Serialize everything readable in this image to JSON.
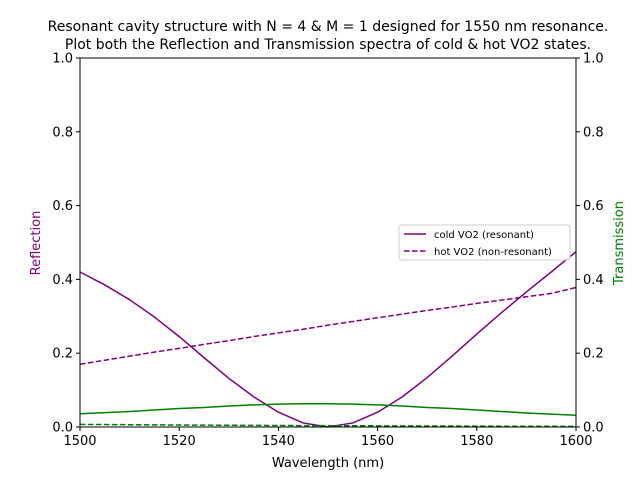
{
  "chart_data": {
    "type": "line",
    "title_line1": "Resonant cavity structure with N = 4 & M = 1 designed for 1550 nm resonance.",
    "title_line2": "Plot both the Reflection and Transmission spectra of cold & hot VO2 states.",
    "xlabel": "Wavelength (nm)",
    "ylabel_left": "Reflection",
    "ylabel_right": "Transmission",
    "xlim": [
      1500,
      1600
    ],
    "ylim_left": [
      0,
      1
    ],
    "ylim_right": [
      0,
      1
    ],
    "x_ticks": [
      "1500",
      "1520",
      "1540",
      "1560",
      "1580",
      "1600"
    ],
    "y_ticks_left": [
      "0.0",
      "0.2",
      "0.4",
      "0.6",
      "0.8",
      "1.0"
    ],
    "y_ticks_right": [
      "0.0",
      "0.2",
      "0.4",
      "0.6",
      "0.8",
      "1.0"
    ],
    "grid": false,
    "legend_position": "center-right",
    "colors": {
      "reflection": "#800080",
      "transmission": "#008000"
    },
    "x": [
      1500,
      1505,
      1510,
      1515,
      1520,
      1525,
      1530,
      1535,
      1540,
      1545,
      1550,
      1555,
      1560,
      1565,
      1570,
      1575,
      1580,
      1585,
      1590,
      1595,
      1600
    ],
    "series": [
      {
        "name": "cold VO2 (resonant)",
        "axis": "left",
        "color": "#800080",
        "dash": "solid",
        "values": [
          0.42,
          0.385,
          0.345,
          0.298,
          0.245,
          0.188,
          0.132,
          0.082,
          0.04,
          0.011,
          0.0,
          0.011,
          0.04,
          0.082,
          0.134,
          0.192,
          0.252,
          0.31,
          0.366,
          0.42,
          0.475
        ]
      },
      {
        "name": "hot VO2 (non-resonant)",
        "axis": "left",
        "color": "#800080",
        "dash": "dashed",
        "values": [
          0.17,
          0.181,
          0.192,
          0.203,
          0.213,
          0.224,
          0.234,
          0.245,
          0.255,
          0.265,
          0.276,
          0.286,
          0.296,
          0.306,
          0.316,
          0.325,
          0.335,
          0.344,
          0.353,
          0.362,
          0.378
        ]
      },
      {
        "axis": "right",
        "color": "#008000",
        "dash": "solid",
        "values": [
          0.036,
          0.039,
          0.042,
          0.046,
          0.05,
          0.053,
          0.057,
          0.06,
          0.062,
          0.063,
          0.063,
          0.062,
          0.06,
          0.057,
          0.053,
          0.05,
          0.046,
          0.042,
          0.038,
          0.035,
          0.032
        ]
      },
      {
        "axis": "right",
        "color": "#008000",
        "dash": "dashed",
        "values": [
          0.007,
          0.0066,
          0.0062,
          0.0058,
          0.0054,
          0.005,
          0.0047,
          0.0044,
          0.0041,
          0.0038,
          0.0036,
          0.0034,
          0.0032,
          0.003,
          0.0028,
          0.0026,
          0.0024,
          0.0022,
          0.002,
          0.0019,
          0.0018
        ]
      }
    ]
  }
}
